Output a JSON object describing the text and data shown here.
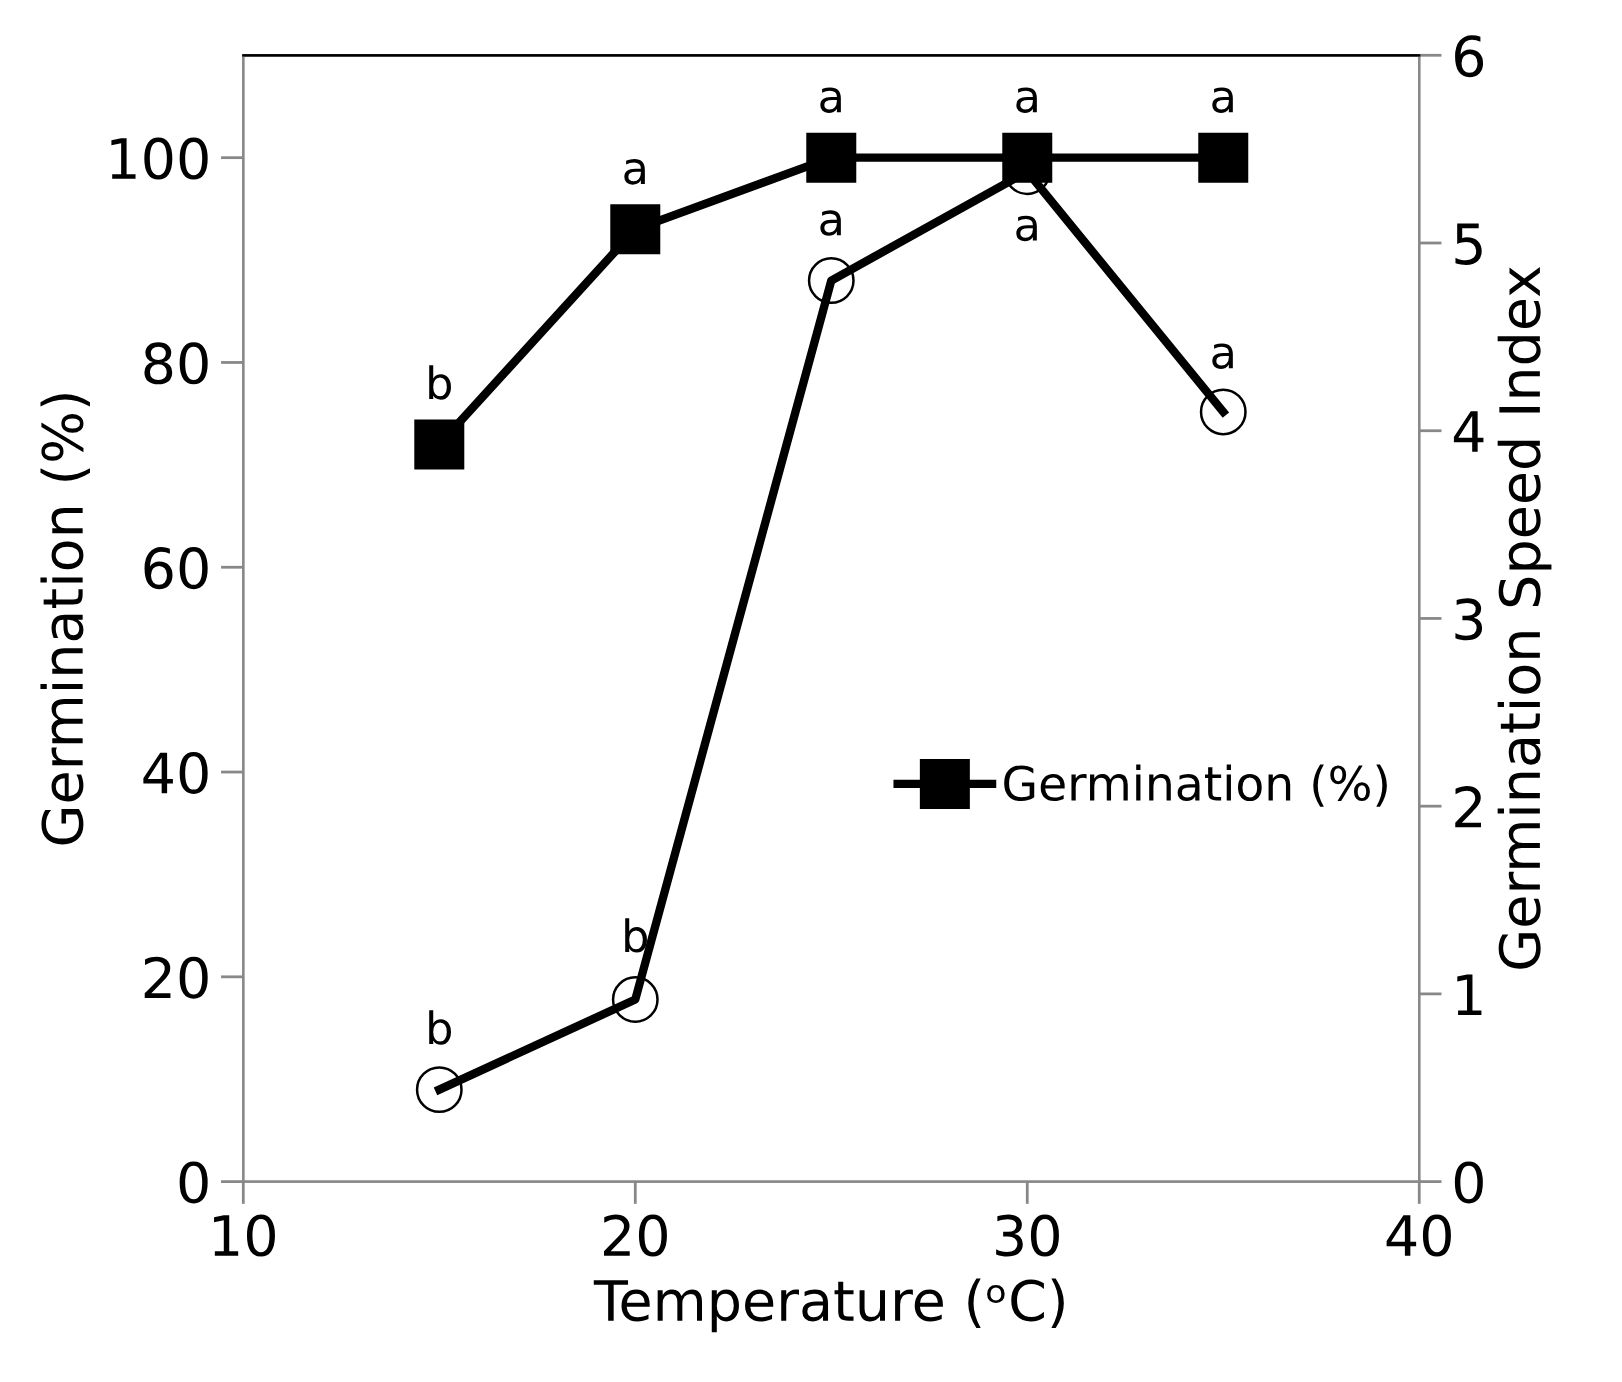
{
  "chart_data": {
    "type": "line",
    "xlabel": "Temperature (ᵒC)",
    "ylabel": "Germination (%)",
    "y2label": "Germination Speed Index",
    "x": [
      15,
      20,
      25,
      30,
      35
    ],
    "series": [
      {
        "name": "Germination (%)",
        "color": "#000000",
        "marker": "square",
        "values": [
          72,
          93,
          100,
          100,
          100
        ]
      },
      {
        "color": "#000000",
        "marker": "circle",
        "axis": "y2",
        "values": [
          0.49,
          0.97,
          4.8,
          5.38,
          4.1
        ]
      }
    ],
    "annotations": [
      {
        "text": "b",
        "x": 15,
        "y": 72
      },
      {
        "text": "a",
        "x": 20,
        "y": 93
      },
      {
        "text": "a",
        "x": 25,
        "y": 100
      },
      {
        "text": "a",
        "x": 30,
        "y": 100
      },
      {
        "text": "a",
        "x": 35,
        "y": 100
      },
      {
        "text": "b",
        "x": 15,
        "y": 9
      },
      {
        "text": "b",
        "x": 20,
        "y": 18
      },
      {
        "text": "a",
        "x": 25,
        "y": 88
      },
      {
        "text": "a",
        "x": 30,
        "y": 99
      },
      {
        "text": "a",
        "x": 35,
        "y": 75
      }
    ],
    "xlim": [
      10,
      40
    ],
    "xticks": [
      10,
      20,
      30,
      40
    ],
    "ylim": [
      0,
      110
    ],
    "yticks": [
      0,
      20,
      40,
      60,
      80,
      100
    ],
    "y2lim": [
      0,
      6
    ],
    "y2ticks": [
      0,
      1,
      2,
      3,
      4,
      5,
      6
    ],
    "legend": "center right",
    "grid": false
  }
}
